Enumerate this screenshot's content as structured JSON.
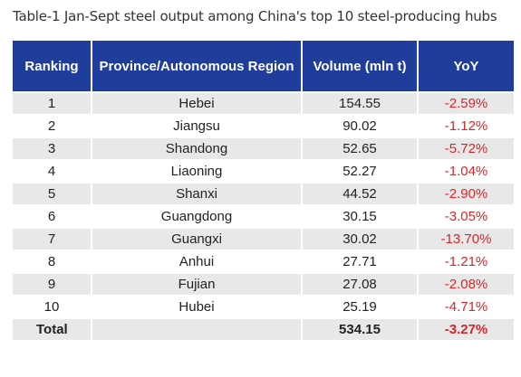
{
  "title": "Table-1 Jan-Sept steel output among China's top 10 steel-producing hubs",
  "headers": {
    "ranking": "Ranking",
    "region": "Province/Autonomous Region",
    "volume": "Volume (mln t)",
    "yoy": "YoY"
  },
  "rows": [
    {
      "rank": "1",
      "region": "Hebei",
      "volume": "154.55",
      "yoy": "-2.59%"
    },
    {
      "rank": "2",
      "region": "Jiangsu",
      "volume": "90.02",
      "yoy": "-1.12%"
    },
    {
      "rank": "3",
      "region": "Shandong",
      "volume": "52.65",
      "yoy": "-5.72%"
    },
    {
      "rank": "4",
      "region": "Liaoning",
      "volume": "52.27",
      "yoy": "-1.04%"
    },
    {
      "rank": "5",
      "region": "Shanxi",
      "volume": "44.52",
      "yoy": "-2.90%"
    },
    {
      "rank": "6",
      "region": "Guangdong",
      "volume": "30.15",
      "yoy": "-3.05%"
    },
    {
      "rank": "7",
      "region": "Guangxi",
      "volume": "30.02",
      "yoy": "-13.70%"
    },
    {
      "rank": "8",
      "region": "Anhui",
      "volume": "27.71",
      "yoy": "-1.21%"
    },
    {
      "rank": "9",
      "region": "Fujian",
      "volume": "27.08",
      "yoy": "-2.08%"
    },
    {
      "rank": "10",
      "region": "Hubei",
      "volume": "25.19",
      "yoy": "-4.71%"
    }
  ],
  "total": {
    "label": "Total",
    "region": "",
    "volume": "534.15",
    "yoy": "-3.27%"
  },
  "colors": {
    "header_bg": "#1f3d9b",
    "negative": "#d9262a",
    "row_shade": "#e8e8e8"
  }
}
